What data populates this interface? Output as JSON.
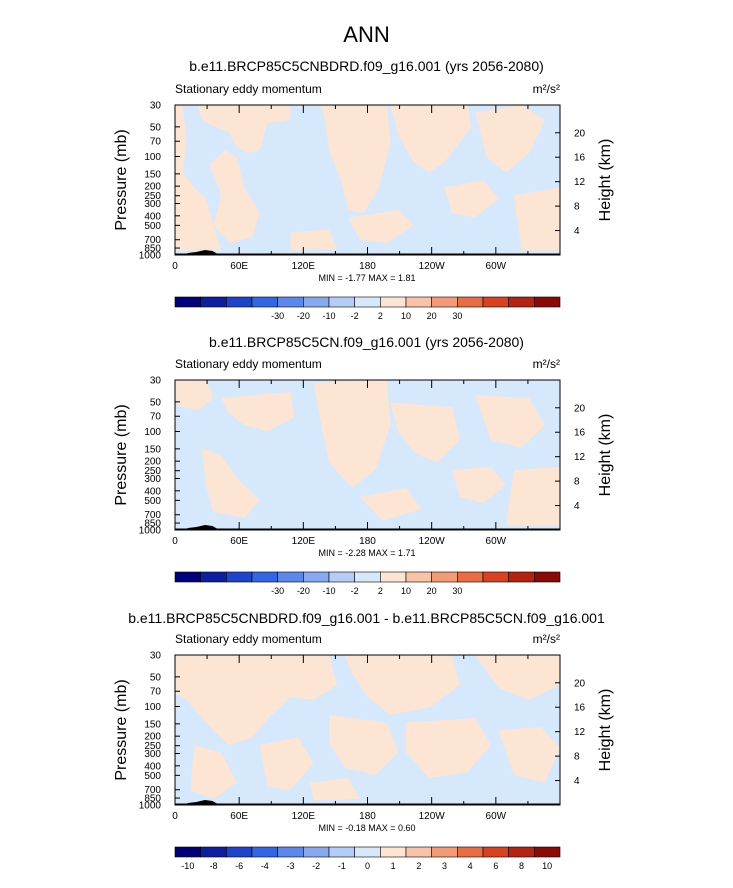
{
  "main_title": "ANN",
  "panels": [
    {
      "title": "b.e11.BRCP85C5CNBDRD.f09_g16.001 (yrs 2056-2080)",
      "variable": "Stationary eddy momentum",
      "units": "m²/s²",
      "min_max": "MIN = -1.77  MAX = 1.81",
      "colorbar_labels": [
        "-30",
        "-20",
        "-10",
        "-2",
        "2",
        "10",
        "20",
        "30"
      ]
    },
    {
      "title": "b.e11.BRCP85C5CN.f09_g16.001 (yrs 2056-2080)",
      "variable": "Stationary eddy momentum",
      "units": "m²/s²",
      "min_max": "MIN = -2.28  MAX = 1.71",
      "colorbar_labels": [
        "-30",
        "-20",
        "-10",
        "-2",
        "2",
        "10",
        "20",
        "30"
      ]
    },
    {
      "title": "b.e11.BRCP85C5CNBDRD.f09_g16.001 - b.e11.BRCP85C5CN.f09_g16.001",
      "variable": "Stationary eddy momentum",
      "units": "m²/s²",
      "min_max": "MIN = -0.18  MAX = 0.60",
      "colorbar_labels": [
        "-10",
        "-8",
        "-6",
        "-4",
        "-3",
        "-2",
        "-1",
        "0",
        "1",
        "2",
        "3",
        "4",
        "6",
        "8",
        "10"
      ]
    }
  ],
  "axes": {
    "ylabel_left": "Pressure (mb)",
    "ylabel_right": "Height (km)",
    "pressure_ticks": [
      "30",
      "50",
      "70",
      "100",
      "150",
      "200",
      "250",
      "300",
      "400",
      "500",
      "700",
      "850",
      "1000"
    ],
    "height_ticks": [
      "20",
      "16",
      "12",
      "8",
      "4"
    ],
    "lon_ticks": [
      "0",
      "60E",
      "120E",
      "180",
      "120W",
      "60W"
    ]
  },
  "colors": {
    "positive_fill": "#fde5d4",
    "negative_fill": "#d6e8fb",
    "topography": "#000000",
    "colorbar": [
      "#00007a",
      "#0d1ea0",
      "#1f44cc",
      "#3366e6",
      "#5c88ec",
      "#87a9f0",
      "#b4cdf6",
      "#d6e8fb",
      "#fde5d4",
      "#f9c3a8",
      "#f49a74",
      "#ea6c43",
      "#d94220",
      "#b52310",
      "#8b0a05"
    ]
  },
  "chart_data": [
    {
      "type": "heatmap",
      "title": "b.e11.BRCP85C5CNBDRD.f09_g16.001 (yrs 2056-2080)",
      "subtitle": "Stationary eddy momentum",
      "units": "m²/s²",
      "xlabel": "",
      "ylabel": "Pressure (mb)",
      "ylabel_right": "Height (km)",
      "y_scale": "log",
      "ylim": [
        1000,
        30
      ],
      "xlim": [
        0,
        360
      ],
      "min": -1.77,
      "max": 1.81,
      "colorbar_levels": [
        -30,
        -20,
        -10,
        -2,
        2,
        10,
        20,
        30
      ]
    },
    {
      "type": "heatmap",
      "title": "b.e11.BRCP85C5CN.f09_g16.001 (yrs 2056-2080)",
      "subtitle": "Stationary eddy momentum",
      "units": "m²/s²",
      "xlabel": "",
      "ylabel": "Pressure (mb)",
      "ylabel_right": "Height (km)",
      "y_scale": "log",
      "ylim": [
        1000,
        30
      ],
      "xlim": [
        0,
        360
      ],
      "min": -2.28,
      "max": 1.71,
      "colorbar_levels": [
        -30,
        -20,
        -10,
        -2,
        2,
        10,
        20,
        30
      ]
    },
    {
      "type": "heatmap",
      "title": "b.e11.BRCP85C5CNBDRD.f09_g16.001 - b.e11.BRCP85C5CN.f09_g16.001",
      "subtitle": "Stationary eddy momentum",
      "units": "m²/s²",
      "xlabel": "",
      "ylabel": "Pressure (mb)",
      "ylabel_right": "Height (km)",
      "y_scale": "log",
      "ylim": [
        1000,
        30
      ],
      "xlim": [
        0,
        360
      ],
      "min": -0.18,
      "max": 0.6,
      "colorbar_levels": [
        -10,
        -8,
        -6,
        -4,
        -3,
        -2,
        -1,
        0,
        1,
        2,
        3,
        4,
        6,
        8,
        10
      ]
    }
  ]
}
